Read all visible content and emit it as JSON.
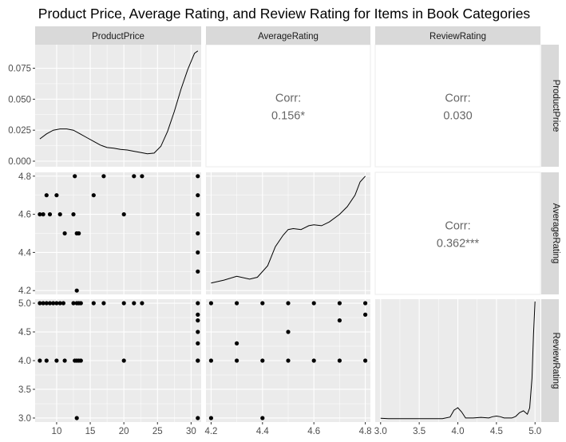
{
  "chart_data": {
    "type": "scatter-matrix",
    "title": "Product Price, Average Rating, and Review Rating for Items in Book Categories",
    "variables": [
      "ProductPrice",
      "AverageRating",
      "ReviewRating"
    ],
    "colors": {
      "panel_bg": "#ebebeb",
      "grid": "#ffffff",
      "strip_bg": "#d9d9d9",
      "text": "#4d4d4d",
      "points": "#000000",
      "corr_text": "#666666"
    },
    "axes": {
      "ProductPrice": {
        "range": [
          6.8,
          31.5
        ],
        "ticks": [
          10,
          15,
          20,
          25,
          30
        ],
        "tick_labels": [
          "10",
          "15",
          "20",
          "25",
          "30"
        ]
      },
      "AverageRating": {
        "range": [
          4.18,
          4.82
        ],
        "ticks": [
          4.2,
          4.4,
          4.6,
          4.8
        ],
        "tick_labels": [
          "4.2",
          "4.4",
          "4.6",
          "4.8"
        ]
      },
      "ReviewRating": {
        "range": [
          2.93,
          5.07
        ],
        "ticks": [
          3.0,
          3.5,
          4.0,
          4.5,
          5.0
        ],
        "tick_labels": [
          "3.0",
          "3.5",
          "4.0",
          "4.5",
          "5.0"
        ]
      }
    },
    "density_axis": {
      "range": [
        -0.0045,
        0.094
      ],
      "ticks": [
        0,
        0.025,
        0.05,
        0.075
      ],
      "tick_labels": [
        "0.000",
        "0.025",
        "0.050",
        "0.075"
      ]
    },
    "correlations": {
      "label": "Corr:",
      "ProductPrice_AverageRating": "0.156*",
      "ProductPrice_ReviewRating": "0.030",
      "AverageRating_ReviewRating": "0.362***"
    },
    "density_ProductPrice": {
      "x": [
        7.5,
        8.5,
        9.5,
        10.5,
        11.5,
        12.5,
        13.5,
        14.5,
        15.5,
        16.5,
        17.5,
        18.5,
        19.5,
        20.5,
        21.5,
        22.5,
        23.5,
        24.5,
        25.5,
        26.5,
        27.5,
        28.5,
        29.5,
        30.5,
        31.0
      ],
      "y": [
        0.018,
        0.022,
        0.025,
        0.026,
        0.026,
        0.025,
        0.022,
        0.019,
        0.016,
        0.013,
        0.011,
        0.0105,
        0.0095,
        0.009,
        0.008,
        0.007,
        0.006,
        0.0065,
        0.012,
        0.024,
        0.04,
        0.058,
        0.074,
        0.087,
        0.089
      ]
    },
    "density_AverageRating": {
      "x": [
        4.2,
        4.25,
        4.3,
        4.35,
        4.38,
        4.42,
        4.45,
        4.48,
        4.5,
        4.52,
        4.55,
        4.58,
        4.6,
        4.63,
        4.66,
        4.7,
        4.73,
        4.76,
        4.78,
        4.8
      ],
      "y": [
        4.24,
        4.255,
        4.275,
        4.26,
        4.27,
        4.33,
        4.43,
        4.49,
        4.52,
        4.525,
        4.52,
        4.54,
        4.545,
        4.54,
        4.56,
        4.6,
        4.64,
        4.7,
        4.77,
        4.8
      ]
    },
    "density_ReviewRating": {
      "x": [
        3.0,
        3.05,
        3.1,
        3.5,
        3.8,
        3.9,
        3.95,
        4.0,
        4.05,
        4.1,
        4.2,
        4.3,
        4.4,
        4.45,
        4.5,
        4.55,
        4.6,
        4.7,
        4.75,
        4.8,
        4.85,
        4.9,
        4.93,
        4.96,
        4.98,
        5.0
      ],
      "y": [
        0.02,
        0.015,
        0.01,
        0.01,
        0.01,
        0.06,
        0.28,
        0.36,
        0.22,
        0.03,
        0.03,
        0.05,
        0.03,
        0.07,
        0.09,
        0.07,
        0.03,
        0.03,
        0.08,
        0.2,
        0.26,
        0.15,
        0.35,
        1.3,
        2.7,
        3.75
      ]
    },
    "scatter_Price_vs_AvgRating": {
      "x": [
        12.7,
        17,
        21.5,
        22.7,
        31,
        8.5,
        10,
        31,
        7.5,
        8,
        9,
        10.5,
        12.5,
        15.5,
        20,
        31,
        11.2,
        13,
        13.3,
        31,
        31,
        31,
        13
      ],
      "y": [
        4.8,
        4.8,
        4.8,
        4.8,
        4.8,
        4.7,
        4.7,
        4.7,
        4.6,
        4.6,
        4.6,
        4.6,
        4.6,
        4.7,
        4.6,
        4.6,
        4.5,
        4.5,
        4.5,
        4.5,
        4.4,
        4.3,
        4.2
      ]
    },
    "scatter_Price_vs_ReviewRating": {
      "x": [
        7.5,
        8,
        8.5,
        9,
        9.5,
        10,
        10.5,
        11,
        12.5,
        13,
        13.3,
        13.6,
        15.5,
        17,
        20,
        21.5,
        22.7,
        31,
        31,
        31,
        31,
        31,
        31,
        7.5,
        8.5,
        10,
        11.2,
        12.7,
        13,
        13.3,
        13.6,
        20,
        31,
        13,
        31
      ],
      "y": [
        5,
        5,
        5,
        5,
        5,
        5,
        5,
        5,
        5,
        5,
        5,
        5,
        5,
        5,
        5,
        5,
        5,
        5,
        4.8,
        4.7,
        4.5,
        4.3,
        4,
        4,
        4,
        4,
        4,
        4,
        4,
        4,
        4,
        4,
        4,
        3,
        3
      ]
    },
    "scatter_AvgRating_vs_ReviewRating": {
      "x": [
        4.2,
        4.3,
        4.4,
        4.5,
        4.6,
        4.7,
        4.8,
        4.8,
        4.7,
        4.5,
        4.3,
        4.2,
        4.3,
        4.4,
        4.5,
        4.6,
        4.7,
        4.8,
        4.2,
        4.4
      ],
      "y": [
        5,
        5,
        5,
        5,
        5,
        5,
        5,
        4.8,
        4.7,
        4.5,
        4.3,
        4,
        4,
        4,
        4,
        4,
        4,
        4,
        3,
        3
      ]
    }
  }
}
